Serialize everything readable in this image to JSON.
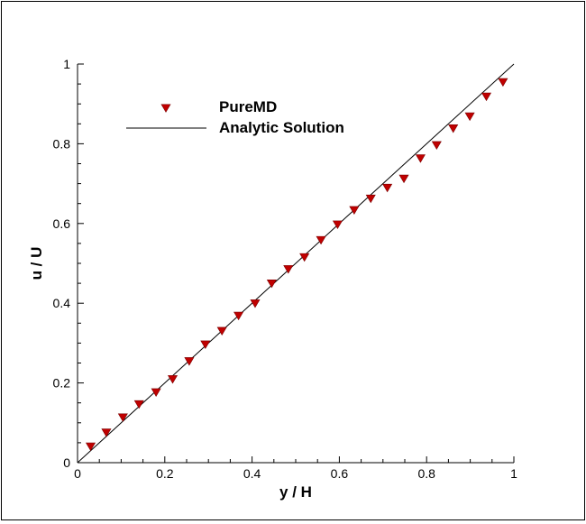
{
  "chart_data": {
    "type": "scatter",
    "title": "",
    "xlabel": "y / H",
    "ylabel": "u / U",
    "xlim": [
      0,
      1
    ],
    "ylim": [
      0,
      1
    ],
    "xticks": [
      "0",
      "0.2",
      "0.4",
      "0.6",
      "0.8",
      "1"
    ],
    "yticks": [
      "0",
      "0.2",
      "0.4",
      "0.6",
      "0.8",
      "1"
    ],
    "grid": false,
    "legend_position": "top-left",
    "series": [
      {
        "name": "PureMD",
        "kind": "markers",
        "marker": "triangle-down",
        "color": "#c00000",
        "x": [
          0.03,
          0.066,
          0.104,
          0.141,
          0.18,
          0.218,
          0.256,
          0.293,
          0.331,
          0.369,
          0.407,
          0.445,
          0.483,
          0.52,
          0.558,
          0.596,
          0.634,
          0.672,
          0.71,
          0.748,
          0.786,
          0.823,
          0.861,
          0.899,
          0.937,
          0.975
        ],
        "y": [
          0.04,
          0.075,
          0.113,
          0.146,
          0.176,
          0.209,
          0.254,
          0.296,
          0.33,
          0.368,
          0.399,
          0.449,
          0.485,
          0.515,
          0.558,
          0.597,
          0.633,
          0.662,
          0.689,
          0.712,
          0.763,
          0.796,
          0.838,
          0.868,
          0.918,
          0.954
        ]
      },
      {
        "name": "Analytic Solution",
        "kind": "line",
        "color": "#000000",
        "x": [
          0,
          1
        ],
        "y": [
          0,
          1
        ]
      }
    ]
  }
}
